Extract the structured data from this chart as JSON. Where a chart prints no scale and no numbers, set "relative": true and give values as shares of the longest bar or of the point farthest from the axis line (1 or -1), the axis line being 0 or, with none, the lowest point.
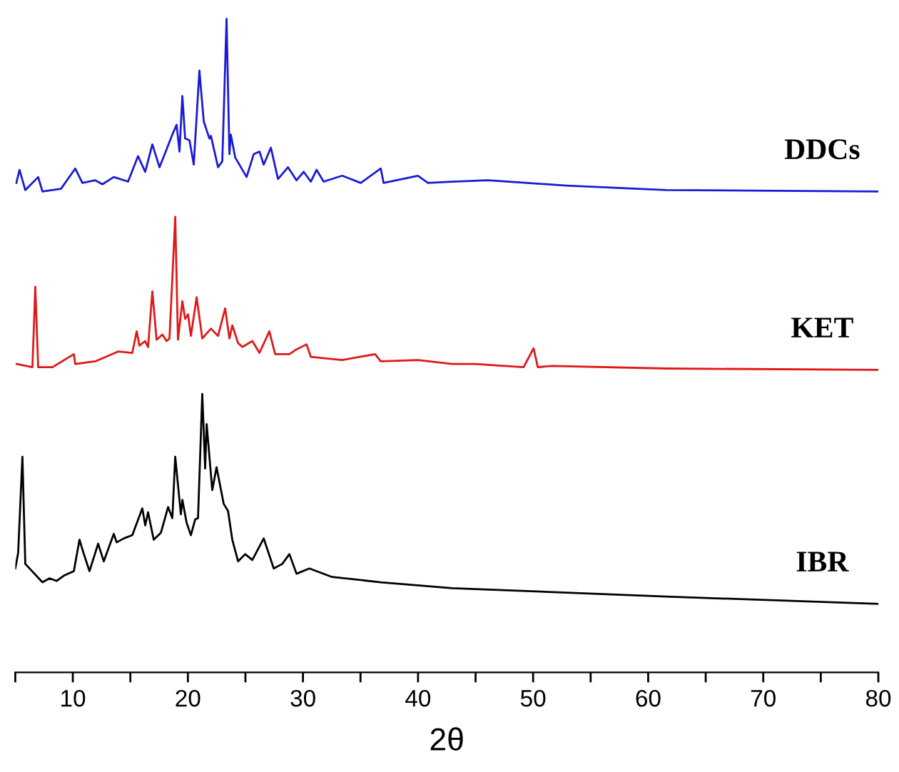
{
  "chart_data": {
    "type": "line",
    "relative": true,
    "xlabel": "2θ",
    "xlim": [
      5,
      80
    ],
    "xticks": [
      {
        "value": 5,
        "label": null
      },
      10,
      {
        "value": 15,
        "label": null
      },
      20,
      {
        "value": 25,
        "label": null
      },
      30,
      {
        "value": 35,
        "label": null
      },
      40,
      {
        "value": 45,
        "label": null
      },
      50,
      {
        "value": 55,
        "label": null
      },
      60,
      {
        "value": 65,
        "label": null
      },
      70,
      {
        "value": 75,
        "label": null
      },
      80
    ],
    "grid": false,
    "legend": false,
    "marker": "none",
    "line_style": "solid",
    "series": [
      {
        "name": "DDCs",
        "color": "#1a1ad6",
        "x": [
          5.09,
          5.37,
          5.87,
          6.99,
          7.36,
          8.97,
          10.21,
          10.83,
          11.95,
          12.57,
          13.56,
          14.8,
          15.67,
          16.29,
          16.91,
          17.53,
          18.03,
          18.65,
          19.02,
          19.27,
          19.52,
          19.76,
          20.14,
          20.51,
          21.0,
          21.38,
          21.87,
          22.0,
          22.62,
          22.99,
          23.36,
          23.61,
          23.73,
          24.11,
          25.1,
          25.72,
          26.22,
          26.59,
          27.21,
          27.83,
          28.7,
          29.44,
          30.06,
          30.68,
          31.18,
          31.8,
          33.41,
          35.02,
          36.76,
          37.01,
          39.99,
          40.86,
          42.97,
          46.07,
          52.89,
          61.58,
          80
        ],
        "values": [
          0.749,
          0.769,
          0.738,
          0.758,
          0.736,
          0.74,
          0.771,
          0.749,
          0.753,
          0.747,
          0.758,
          0.751,
          0.79,
          0.766,
          0.808,
          0.773,
          0.795,
          0.823,
          0.838,
          0.797,
          0.882,
          0.817,
          0.814,
          0.777,
          0.921,
          0.843,
          0.817,
          0.821,
          0.773,
          0.782,
          1.0,
          0.793,
          0.823,
          0.788,
          0.758,
          0.793,
          0.797,
          0.777,
          0.803,
          0.755,
          0.773,
          0.753,
          0.766,
          0.751,
          0.769,
          0.751,
          0.76,
          0.749,
          0.771,
          0.749,
          0.76,
          0.749,
          0.751,
          0.753,
          0.745,
          0.738,
          0.736
        ]
      },
      {
        "name": "KET",
        "color": "#e01818",
        "x": [
          5.12,
          6.49,
          6.74,
          6.99,
          8.23,
          10.09,
          10.21,
          11.95,
          13.93,
          15.17,
          15.55,
          15.79,
          16.29,
          16.54,
          16.91,
          17.28,
          17.78,
          18.15,
          18.4,
          18.9,
          19.14,
          19.52,
          19.76,
          20.01,
          20.26,
          20.76,
          21.25,
          22.0,
          22.62,
          23.24,
          23.61,
          23.86,
          24.36,
          24.73,
          25.6,
          26.22,
          27.08,
          27.58,
          28.82,
          29.32,
          30.31,
          30.68,
          33.41,
          36.27,
          36.76,
          39.99,
          42.97,
          44.95,
          49.17,
          50.04,
          50.41,
          51.65,
          61.58,
          80
        ],
        "values": [
          0.472,
          0.467,
          0.59,
          0.467,
          0.467,
          0.487,
          0.472,
          0.476,
          0.491,
          0.489,
          0.522,
          0.5,
          0.507,
          0.498,
          0.583,
          0.509,
          0.517,
          0.507,
          0.511,
          0.697,
          0.509,
          0.568,
          0.541,
          0.548,
          0.515,
          0.574,
          0.511,
          0.526,
          0.515,
          0.557,
          0.511,
          0.531,
          0.504,
          0.498,
          0.507,
          0.489,
          0.522,
          0.487,
          0.487,
          0.493,
          0.502,
          0.483,
          0.478,
          0.487,
          0.476,
          0.478,
          0.472,
          0.472,
          0.467,
          0.496,
          0.467,
          0.469,
          0.465,
          0.463
        ]
      },
      {
        "name": "IBR",
        "color": "#000000",
        "x": [
          5.0,
          5.25,
          5.62,
          5.87,
          7.36,
          7.98,
          8.6,
          9.22,
          10.09,
          10.58,
          10.96,
          11.45,
          12.2,
          12.69,
          13.56,
          13.81,
          14.43,
          15.17,
          16.04,
          16.29,
          16.54,
          17.03,
          17.66,
          18.28,
          18.65,
          18.9,
          19.39,
          19.52,
          19.89,
          20.26,
          20.63,
          20.88,
          21.25,
          21.5,
          21.63,
          22.12,
          22.49,
          23.11,
          23.49,
          23.86,
          24.36,
          24.98,
          25.6,
          26.59,
          27.46,
          28.2,
          28.82,
          29.44,
          30.56,
          32.54,
          36.76,
          42.97,
          61.58,
          80
        ],
        "values": [
          0.159,
          0.183,
          0.33,
          0.166,
          0.138,
          0.144,
          0.14,
          0.148,
          0.155,
          0.203,
          0.181,
          0.155,
          0.197,
          0.17,
          0.212,
          0.199,
          0.205,
          0.21,
          0.251,
          0.225,
          0.245,
          0.203,
          0.214,
          0.253,
          0.236,
          0.33,
          0.242,
          0.264,
          0.229,
          0.21,
          0.234,
          0.236,
          0.426,
          0.312,
          0.38,
          0.279,
          0.314,
          0.258,
          0.247,
          0.203,
          0.17,
          0.181,
          0.172,
          0.205,
          0.159,
          0.166,
          0.181,
          0.151,
          0.159,
          0.146,
          0.138,
          0.129,
          0.116,
          0.105
        ]
      }
    ]
  }
}
